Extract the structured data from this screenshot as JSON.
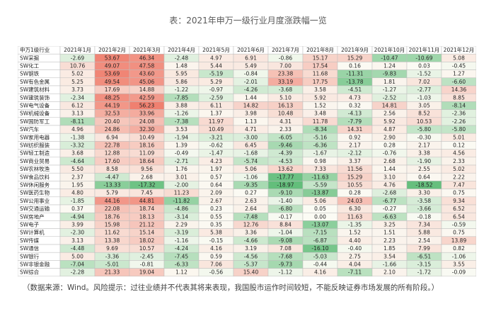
{
  "footnote": "（数据来源：Wind。风险提示：过往业绩并不代表其将来表现，我国股市运作时间较短，不能反映证券市场发展的所有阶段。）",
  "colors": {
    "pos_strong": "#f08070",
    "neg_strong": "#63be7b",
    "neutral": "#fbfbf4"
  },
  "chart_data": {
    "type": "heatmap",
    "title": "表：2021年申万一级行业月度涨跌幅一览",
    "corner_label": "申万1级行业",
    "columns": [
      "2021年1月",
      "2021年2月",
      "2021年3月",
      "2021年4月",
      "2021年5月",
      "2021年6月",
      "2021年7月",
      "2021年8月",
      "2021年9月",
      "2021年10月",
      "2021年11月",
      "2021年12月"
    ],
    "rows": [
      {
        "name": "SW采掘",
        "values": [
          -2.69,
          53.67,
          46.34,
          -2.48,
          4.97,
          6.91,
          -0.86,
          15.17,
          15.29,
          -10.47,
          -10.69,
          5.08
        ]
      },
      {
        "name": "SW化工",
        "values": [
          10.76,
          49.07,
          47.58,
          1.48,
          5.44,
          5.49,
          7.0,
          17.54,
          0.16,
          1.24,
          0.03,
          -0.45
        ]
      },
      {
        "name": "SW钢铁",
        "values": [
          5.02,
          53.69,
          43.6,
          5.95,
          -5.19,
          -0.84,
          23.38,
          11.68,
          -11.31,
          -9.83,
          -1.52,
          1.27
        ]
      },
      {
        "name": "SW有色金属",
        "values": [
          5.25,
          49.54,
          45.06,
          5.86,
          5.29,
          -2.01,
          33.19,
          17.75,
          -13.78,
          1.81,
          7.02,
          -6.6
        ]
      },
      {
        "name": "SW建筑材料",
        "values": [
          3.73,
          17.69,
          14.88,
          -1.22,
          -0.97,
          -4.26,
          -3.68,
          3.58,
          -4.51,
          -1.27,
          -2.77,
          14.36
        ]
      },
      {
        "name": "SW建筑装饰",
        "values": [
          -2.34,
          48.25,
          42.59,
          -7.85,
          -2.59,
          1.44,
          5.1,
          5.92,
          4.73,
          -2.52,
          -1.03,
          8.85
        ]
      },
      {
        "name": "SW电气设备",
        "values": [
          6.12,
          44.19,
          56.23,
          3.88,
          6.11,
          14.82,
          16.13,
          1.52,
          0.32,
          14.81,
          3.05,
          -8.14
        ]
      },
      {
        "name": "SW机械设备",
        "values": [
          3.13,
          32.53,
          33.96,
          -1.26,
          1.37,
          3.98,
          10.48,
          3.48,
          -4.13,
          2.56,
          8.52,
          -2.36
        ]
      },
      {
        "name": "SW国防军工",
        "values": [
          -8.11,
          20.4,
          24.08,
          -7.38,
          11.97,
          1.13,
          4.31,
          11.78,
          -7.79,
          5.92,
          10.53,
          -2.26
        ]
      },
      {
        "name": "SW汽车",
        "values": [
          4.96,
          24.86,
          32.3,
          3.53,
          10.49,
          4.71,
          2.33,
          -8.34,
          14.31,
          4.87,
          -5.8,
          -5.8
        ]
      },
      {
        "name": "SW家用电器",
        "values": [
          -1.38,
          6.94,
          10.49,
          -1.94,
          -3.21,
          -3.0,
          -6.05,
          -5.16,
          0.92,
          2.9,
          -0.3,
          5.01
        ]
      },
      {
        "name": "SW纺织服装",
        "values": [
          -3.32,
          22.78,
          18.16,
          1.39,
          -0.62,
          6.45,
          -9.46,
          -6.36,
          2.17,
          0.28,
          2.17,
          0.12
        ]
      },
      {
        "name": "SW轻工制造",
        "values": [
          3.68,
          12.88,
          11.09,
          -0.49,
          -1.47,
          -1.68,
          -4.39,
          -1.67,
          -2.12,
          -0.76,
          3.38,
          4.56
        ]
      },
      {
        "name": "SW商业贸易",
        "values": [
          -4.64,
          17.6,
          18.64,
          -2.71,
          4.23,
          -5.74,
          -4.53,
          0.98,
          3.37,
          2.68,
          -1.9,
          2.33
        ]
      },
      {
        "name": "SW农林牧渔",
        "values": [
          5.5,
          8.58,
          9.56,
          1.76,
          1.97,
          5.06,
          13.62,
          7.33,
          11.56,
          1.44,
          2.55,
          5.02
        ]
      },
      {
        "name": "SW食品饮料",
        "values": [
          2.37,
          -4.47,
          2.68,
          3.01,
          0.57,
          -1.06,
          -17.77,
          -11.63,
          15.29,
          3.1,
          0.64,
          2.22
        ]
      },
      {
        "name": "SW休闲服务",
        "values": [
          1.95,
          -13.33,
          -17.32,
          -2.0,
          0.64,
          -9.35,
          -18.97,
          -5.59,
          10.55,
          4.76,
          -18.52,
          7.47
        ]
      },
      {
        "name": "SW医药生物",
        "values": [
          4.8,
          5.79,
          7.45,
          11.23,
          2.09,
          0.27,
          -9.1,
          -13.87,
          0.28,
          -2.68,
          3.3,
          0.75
        ]
      },
      {
        "name": "SW公用事业",
        "values": [
          -1.85,
          44.16,
          44.81,
          -11.82,
          2.67,
          2.63,
          -1.4,
          5.06,
          24.03,
          -6.77,
          -3.58,
          9.34
        ]
      },
      {
        "name": "SW交通运输",
        "values": [
          0.37,
          22.08,
          18.74,
          -4.86,
          0.23,
          2.64,
          -6.8,
          0.05,
          6.3,
          -0.27,
          -3.66,
          6.52
        ]
      },
      {
        "name": "SW房地产",
        "values": [
          -4.94,
          18.76,
          18.13,
          -3.14,
          0.55,
          -7.48,
          -0.17,
          0.0,
          11.63,
          -6.63,
          -0.18,
          6.54
        ]
      },
      {
        "name": "SW电子",
        "values": [
          3.99,
          15.98,
          21.12,
          2.29,
          0.35,
          12.76,
          8.84,
          -13.07,
          -1.35,
          3.25,
          7.34,
          -0.59
        ]
      },
      {
        "name": "SW计算机",
        "values": [
          -2.3,
          11.62,
          15.14,
          -3.19,
          5.38,
          3.36,
          -1.04,
          -7.15,
          1.52,
          1.51,
          5.88,
          0.75
        ]
      },
      {
        "name": "SW传媒",
        "values": [
          3.13,
          13.38,
          18.02,
          -1.16,
          -0.15,
          -4.66,
          -9.08,
          -6.87,
          4.4,
          2.23,
          2.54,
          13.89
        ]
      },
      {
        "name": "SW通信",
        "values": [
          -4.48,
          9.69,
          10.57,
          -4.24,
          4.16,
          3.19,
          7.08,
          -16.1,
          -0.4,
          1.85,
          7.99,
          0.82
        ]
      },
      {
        "name": "SW银行",
        "values": [
          5.0,
          -3.36,
          -2.45,
          -7.45,
          0.59,
          -4.56,
          -7.68,
          -5.03,
          2.75,
          3.54,
          -6.51,
          -1.06
        ]
      },
      {
        "name": "SW非银金融",
        "values": [
          -7.04,
          -5.01,
          -0.81,
          -6.33,
          7.06,
          -5.37,
          -9.73,
          -0.44,
          4.04,
          -1.66,
          -3.15,
          3.55
        ]
      },
      {
        "name": "SW综合",
        "values": [
          -2.28,
          21.33,
          19.04,
          1.12,
          -0.56,
          15.4,
          -1.12,
          4.16,
          -7.11,
          2.1,
          -1.72,
          -0.09
        ]
      }
    ]
  }
}
